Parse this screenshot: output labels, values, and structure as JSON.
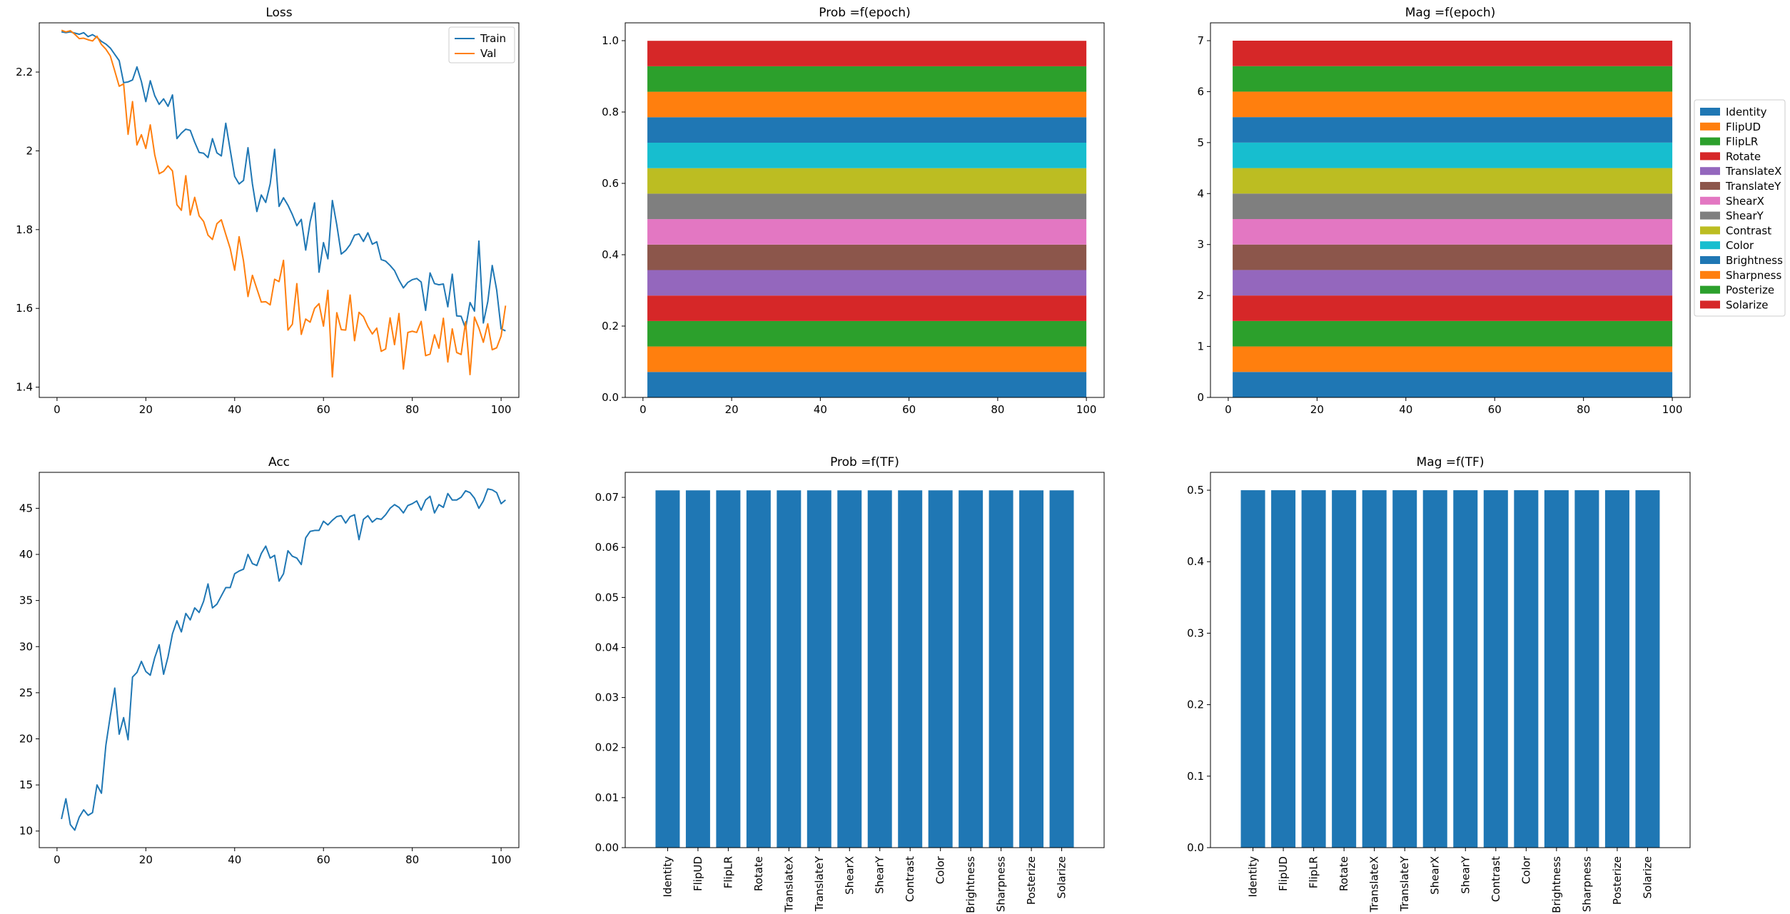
{
  "figure": {
    "background": "#ffffff"
  },
  "transforms": [
    "Identity",
    "FlipUD",
    "FlipLR",
    "Rotate",
    "TranslateX",
    "TranslateY",
    "ShearX",
    "ShearY",
    "Contrast",
    "Color",
    "Brightness",
    "Sharpness",
    "Posterize",
    "Solarize"
  ],
  "palette": [
    "#1f77b4",
    "#ff7f0e",
    "#2ca02c",
    "#d62728",
    "#9467bd",
    "#8c564b",
    "#e377c2",
    "#7f7f7f",
    "#bcbd22",
    "#17becf",
    "#1f77b4",
    "#ff7f0e",
    "#2ca02c",
    "#d62728"
  ],
  "chart_data": [
    {
      "id": "loss",
      "type": "line",
      "title": "Loss",
      "xlabel": "",
      "ylabel": "",
      "xlim": [
        -4,
        104
      ],
      "ylim": [
        1.374,
        2.325
      ],
      "xticks": [
        0,
        20,
        40,
        60,
        80,
        100
      ],
      "yticks": [
        1.4,
        1.6,
        1.8,
        2.0,
        2.2
      ],
      "grid": false,
      "legend": "top-right",
      "x_start": 1,
      "series": [
        {
          "name": "Train",
          "color": "#1f77b4",
          "values": [
            2.302,
            2.3,
            2.302,
            2.299,
            2.296,
            2.3,
            2.29,
            2.295,
            2.288,
            2.278,
            2.271,
            2.261,
            2.245,
            2.229,
            2.173,
            2.175,
            2.18,
            2.213,
            2.176,
            2.125,
            2.178,
            2.14,
            2.118,
            2.132,
            2.113,
            2.142,
            2.031,
            2.045,
            2.055,
            2.052,
            2.022,
            1.996,
            1.994,
            1.983,
            2.031,
            1.995,
            1.987,
            2.07,
            2.002,
            1.935,
            1.916,
            1.925,
            2.008,
            1.916,
            1.846,
            1.888,
            1.869,
            1.916,
            2.004,
            1.859,
            1.881,
            1.862,
            1.838,
            1.81,
            1.826,
            1.748,
            1.82,
            1.868,
            1.692,
            1.767,
            1.726,
            1.874,
            1.812,
            1.738,
            1.747,
            1.762,
            1.786,
            1.789,
            1.77,
            1.792,
            1.763,
            1.769,
            1.724,
            1.72,
            1.709,
            1.696,
            1.672,
            1.652,
            1.666,
            1.673,
            1.676,
            1.667,
            1.595,
            1.69,
            1.663,
            1.66,
            1.662,
            1.604,
            1.687,
            1.581,
            1.58,
            1.549,
            1.615,
            1.593,
            1.771,
            1.563,
            1.617,
            1.709,
            1.647,
            1.548,
            1.543
          ]
        },
        {
          "name": "Val",
          "color": "#ff7f0e",
          "values": [
            2.306,
            2.302,
            2.305,
            2.296,
            2.285,
            2.286,
            2.282,
            2.279,
            2.291,
            2.27,
            2.258,
            2.241,
            2.203,
            2.164,
            2.17,
            2.042,
            2.125,
            2.015,
            2.041,
            2.006,
            2.066,
            1.99,
            1.942,
            1.948,
            1.962,
            1.949,
            1.863,
            1.849,
            1.937,
            1.837,
            1.882,
            1.835,
            1.821,
            1.786,
            1.775,
            1.815,
            1.825,
            1.788,
            1.752,
            1.697,
            1.782,
            1.72,
            1.63,
            1.684,
            1.65,
            1.616,
            1.617,
            1.609,
            1.674,
            1.668,
            1.722,
            1.545,
            1.56,
            1.663,
            1.534,
            1.573,
            1.565,
            1.6,
            1.612,
            1.555,
            1.646,
            1.426,
            1.589,
            1.546,
            1.545,
            1.634,
            1.518,
            1.59,
            1.579,
            1.554,
            1.535,
            1.55,
            1.491,
            1.497,
            1.576,
            1.508,
            1.587,
            1.446,
            1.539,
            1.542,
            1.539,
            1.567,
            1.48,
            1.484,
            1.533,
            1.499,
            1.575,
            1.464,
            1.548,
            1.488,
            1.483,
            1.566,
            1.432,
            1.578,
            1.55,
            1.514,
            1.561,
            1.495,
            1.5,
            1.53,
            1.607
          ]
        }
      ]
    },
    {
      "id": "acc",
      "type": "line",
      "title": "Acc",
      "xlabel": "",
      "ylabel": "",
      "xlim": [
        -4,
        104
      ],
      "ylim": [
        8.2,
        48.9
      ],
      "xticks": [
        0,
        20,
        40,
        60,
        80,
        100
      ],
      "yticks": [
        10,
        15,
        20,
        25,
        30,
        35,
        40,
        45
      ],
      "grid": false,
      "legend": "none",
      "x_start": 1,
      "series": [
        {
          "name": "",
          "color": "#1f77b4",
          "values": [
            11.3,
            13.5,
            10.7,
            10.1,
            11.5,
            12.3,
            11.7,
            12.0,
            15.0,
            14.1,
            19.3,
            22.5,
            25.5,
            20.5,
            22.3,
            19.9,
            26.7,
            27.2,
            28.4,
            27.3,
            26.9,
            28.8,
            30.2,
            27.0,
            28.9,
            31.4,
            32.8,
            31.6,
            33.6,
            32.9,
            34.2,
            33.7,
            34.9,
            36.8,
            34.2,
            34.6,
            35.5,
            36.4,
            36.4,
            37.9,
            38.2,
            38.4,
            40.0,
            39.0,
            38.8,
            40.1,
            40.9,
            39.6,
            39.9,
            37.1,
            37.9,
            40.4,
            39.8,
            39.6,
            38.9,
            41.8,
            42.5,
            42.6,
            42.6,
            43.6,
            43.2,
            43.7,
            44.1,
            44.2,
            43.4,
            44.1,
            44.3,
            41.6,
            43.8,
            44.2,
            43.5,
            43.9,
            43.8,
            44.3,
            45.0,
            45.4,
            45.1,
            44.5,
            45.3,
            45.5,
            45.8,
            44.8,
            45.9,
            46.3,
            44.5,
            45.4,
            45.1,
            46.6,
            45.9,
            45.9,
            46.2,
            46.9,
            46.7,
            46.1,
            45.0,
            45.8,
            47.1,
            47.0,
            46.7,
            45.5,
            45.9
          ]
        }
      ]
    },
    {
      "id": "prob_epoch",
      "type": "area",
      "title": "Prob =f(epoch)",
      "xlabel": "",
      "ylabel": "",
      "xlim": [
        -4,
        104
      ],
      "ylim": [
        0,
        1.05
      ],
      "xticks": [
        0,
        20,
        40,
        60,
        80,
        100
      ],
      "yticks": [
        "0.0",
        "0.2",
        "0.4",
        "0.6",
        "0.8",
        "1.0"
      ],
      "grid": false,
      "legend": "none",
      "x_range": [
        1,
        100
      ],
      "stacked": true,
      "series_values_constant_per_epoch": 0.0714
    },
    {
      "id": "mag_epoch",
      "type": "area",
      "title": "Mag =f(epoch)",
      "xlabel": "",
      "ylabel": "",
      "xlim": [
        -4,
        104
      ],
      "ylim": [
        0,
        7.35
      ],
      "xticks": [
        0,
        20,
        40,
        60,
        80,
        100
      ],
      "yticks": [
        0,
        1,
        2,
        3,
        4,
        5,
        6,
        7
      ],
      "grid": false,
      "legend": "outside-right",
      "x_range": [
        1,
        100
      ],
      "stacked": true,
      "series_values_constant_per_epoch": 0.5
    },
    {
      "id": "prob_tf",
      "type": "bar",
      "title": "Prob =f(TF)",
      "xlabel": "",
      "ylabel": "",
      "ylim": [
        0,
        0.075
      ],
      "yticks": [
        "0.00",
        "0.01",
        "0.02",
        "0.03",
        "0.04",
        "0.05",
        "0.06",
        "0.07"
      ],
      "grid": false,
      "legend": "none",
      "color": "#1f77b4",
      "values": [
        0.0714,
        0.0714,
        0.0714,
        0.0714,
        0.0714,
        0.0714,
        0.0714,
        0.0714,
        0.0714,
        0.0714,
        0.0714,
        0.0714,
        0.0714,
        0.0714
      ]
    },
    {
      "id": "mag_tf",
      "type": "bar",
      "title": "Mag =f(TF)",
      "xlabel": "",
      "ylabel": "",
      "ylim": [
        0,
        0.525
      ],
      "yticks": [
        "0.0",
        "0.1",
        "0.2",
        "0.3",
        "0.4",
        "0.5"
      ],
      "grid": false,
      "legend": "none",
      "color": "#1f77b4",
      "values": [
        0.5,
        0.5,
        0.5,
        0.5,
        0.5,
        0.5,
        0.5,
        0.5,
        0.5,
        0.5,
        0.5,
        0.5,
        0.5,
        0.5
      ]
    }
  ]
}
